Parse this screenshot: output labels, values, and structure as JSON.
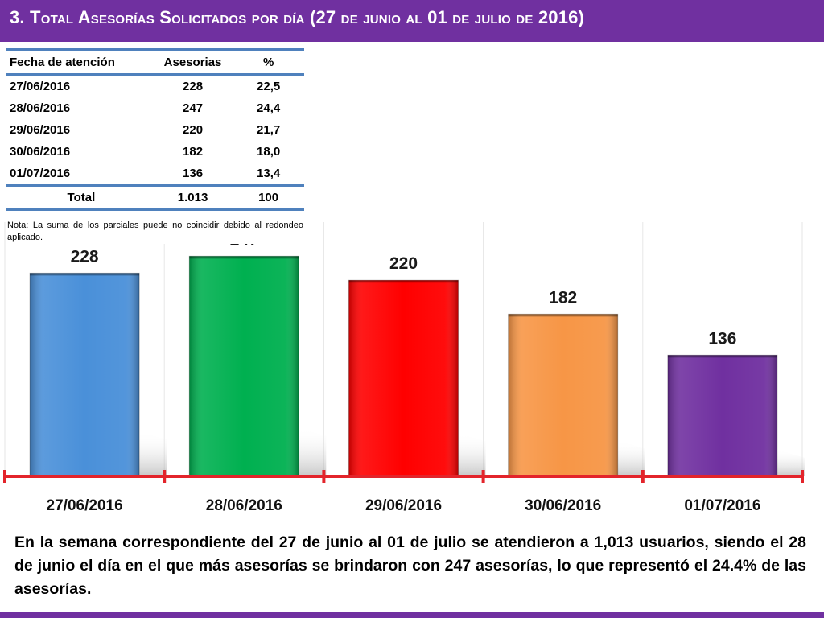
{
  "title": "3.  Total Asesorías Solicitados por día  (27 de junio al 01 de julio de 2016)",
  "table": {
    "headers": [
      "Fecha de atención",
      "Asesorias",
      "%"
    ],
    "rows": [
      [
        "27/06/2016",
        "228",
        "22,5"
      ],
      [
        "28/06/2016",
        "247",
        "24,4"
      ],
      [
        "29/06/2016",
        "220",
        "21,7"
      ],
      [
        "30/06/2016",
        "182",
        "18,0"
      ],
      [
        "01/07/2016",
        "136",
        "13,4"
      ]
    ],
    "total": [
      "Total",
      "1.013",
      "100"
    ]
  },
  "note": "Nota: La suma de los parciales puede no coincidir debido al redondeo aplicado.",
  "chart_data": {
    "type": "bar",
    "categories": [
      "27/06/2016",
      "28/06/2016",
      "29/06/2016",
      "30/06/2016",
      "01/07/2016"
    ],
    "values": [
      228,
      247,
      220,
      182,
      136
    ],
    "title": "",
    "xlabel": "",
    "ylabel": "",
    "ylim": [
      0,
      260
    ],
    "grid": true,
    "colors": [
      "#4A90D9",
      "#00B050",
      "#FF0000",
      "#F79646",
      "#7030A0"
    ],
    "axis_color": "#E3242B"
  },
  "summary": "En la semana correspondiente del 27 de junio al 01 de julio se  atendieron a 1,013 usuarios, siendo el  28 de junio el día en el que más asesorías se brindaron con 247 asesorías, lo que representó el 24.4% de las asesorías.",
  "colors": {
    "brand": "#7030A0",
    "table_rule": "#4F81BD"
  }
}
